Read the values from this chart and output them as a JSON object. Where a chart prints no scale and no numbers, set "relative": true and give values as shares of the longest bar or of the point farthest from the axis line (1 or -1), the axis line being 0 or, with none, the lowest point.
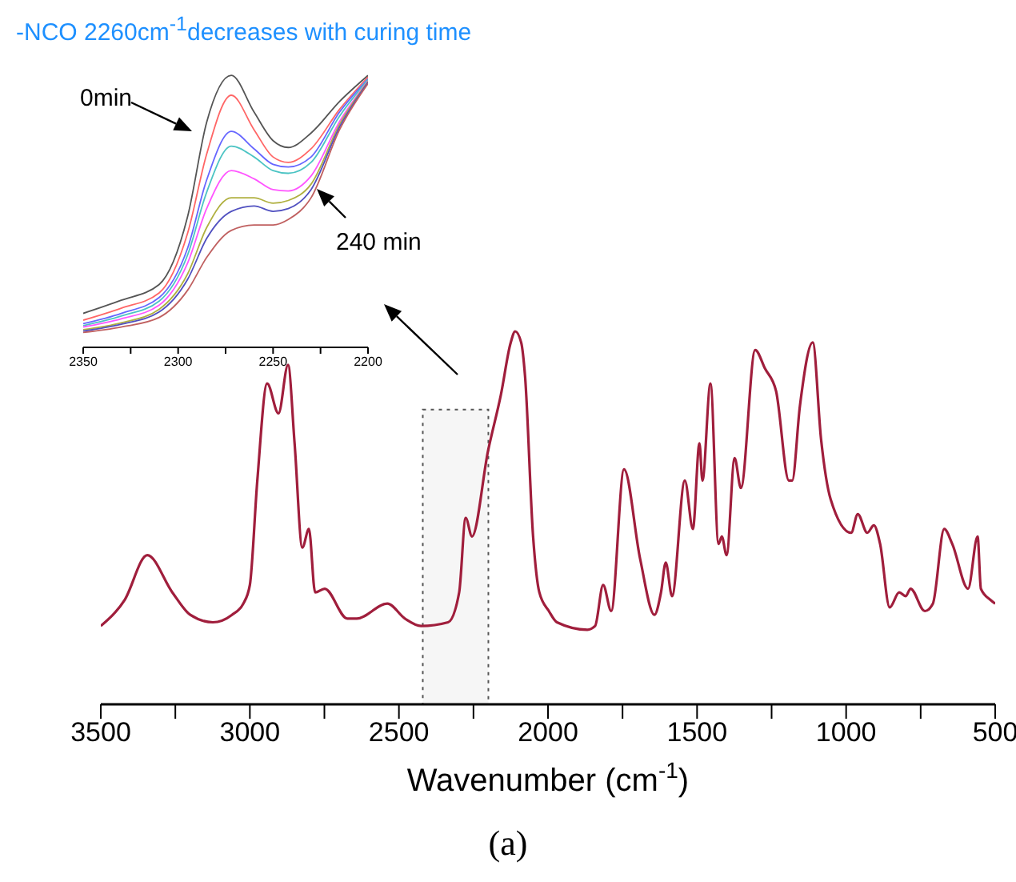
{
  "chart_data": [
    {
      "type": "line",
      "relative": true,
      "xlabel": "Wavenumber (cm$^{-1}$)",
      "annotations": [
        "(a)"
      ],
      "xlim": [
        3500,
        500
      ],
      "xticks": [
        3500,
        {
          "value": 3250,
          "label": null
        },
        3000,
        {
          "value": 2750,
          "label": null
        },
        2500,
        {
          "value": 2250,
          "label": null
        },
        2000,
        {
          "value": 1750,
          "label": null
        },
        1500,
        {
          "value": 1250,
          "label": null
        },
        1000,
        {
          "value": 750,
          "label": null
        },
        500
      ],
      "bands": [
        {
          "axis": "x",
          "from": 2420,
          "to": 2200,
          "color": "#555555"
        }
      ],
      "marker": "none",
      "line_style": "solid",
      "x": [
        3500,
        3420,
        3344,
        3260,
        3200,
        3124,
        3060,
        3022,
        3000,
        2975,
        2942,
        2904,
        2872,
        2850,
        2824,
        2802,
        2781,
        2749,
        2673,
        2641,
        2539,
        2480,
        2426,
        2335,
        2298,
        2276,
        2255,
        2201,
        2158,
        2125,
        2110,
        2090,
        2077,
        2050,
        2029,
        1997,
        1970,
        1868,
        1842,
        1815,
        1788,
        1745,
        1691,
        1643,
        1621,
        1605,
        1584,
        1541,
        1514,
        1492,
        1482,
        1455,
        1428,
        1417,
        1401,
        1374,
        1353,
        1305,
        1272,
        1235,
        1192,
        1181,
        1155,
        1112,
        1084,
        1052,
        983,
        961,
        929,
        907,
        886,
        854,
        822,
        800,
        784,
        736,
        709,
        671,
        644,
        591,
        559,
        548,
        516,
        500
      ],
      "series": [
        {
          "color": "#a01e3c",
          "values": [
            0.21,
            0.28,
            0.4,
            0.3,
            0.24,
            0.22,
            0.24,
            0.27,
            0.32,
            0.6,
            0.86,
            0.78,
            0.91,
            0.7,
            0.42,
            0.47,
            0.3,
            0.31,
            0.23,
            0.23,
            0.27,
            0.23,
            0.21,
            0.22,
            0.3,
            0.5,
            0.45,
            0.68,
            0.83,
            0.97,
            1.0,
            0.97,
            0.88,
            0.45,
            0.3,
            0.25,
            0.22,
            0.2,
            0.21,
            0.32,
            0.25,
            0.63,
            0.39,
            0.24,
            0.3,
            0.38,
            0.29,
            0.6,
            0.47,
            0.7,
            0.6,
            0.86,
            0.43,
            0.45,
            0.4,
            0.66,
            0.58,
            0.95,
            0.9,
            0.84,
            0.6,
            0.6,
            0.8,
            0.97,
            0.71,
            0.55,
            0.46,
            0.51,
            0.46,
            0.48,
            0.43,
            0.26,
            0.3,
            0.29,
            0.31,
            0.25,
            0.27,
            0.47,
            0.43,
            0.31,
            0.45,
            0.31,
            0.28,
            0.27
          ]
        }
      ]
    },
    {
      "type": "line",
      "relative": true,
      "title": "-NCO 2260cm$^{-1}$decreases with curing time",
      "annotations": [
        "0min",
        "240 min"
      ],
      "xlim": [
        2350,
        2200
      ],
      "xticks": [
        2350,
        {
          "value": 2325,
          "label": null
        },
        2300,
        {
          "value": 2275,
          "label": null
        },
        2250,
        {
          "value": 2225,
          "label": null
        },
        2200
      ],
      "marker": "none",
      "line_style": "solid",
      "x": [
        2350,
        2330,
        2310,
        2295,
        2285,
        2272,
        2260,
        2250,
        2242,
        2230,
        2215,
        2200
      ],
      "series": [
        {
          "color": "#555555",
          "values": [
            0.125,
            0.173,
            0.231,
            0.481,
            0.827,
            1.0,
            0.865,
            0.76,
            0.735,
            0.788,
            0.904,
            1.0
          ]
        },
        {
          "color": "#ff6666",
          "values": [
            0.1,
            0.144,
            0.2,
            0.42,
            0.71,
            0.927,
            0.8,
            0.7,
            0.68,
            0.73,
            0.875,
            0.994
          ]
        },
        {
          "color": "#6666ff",
          "values": [
            0.087,
            0.125,
            0.183,
            0.365,
            0.615,
            0.794,
            0.73,
            0.673,
            0.663,
            0.7,
            0.865,
            0.987
          ]
        },
        {
          "color": "#4cc4c4",
          "values": [
            0.08,
            0.115,
            0.17,
            0.34,
            0.57,
            0.74,
            0.7,
            0.65,
            0.64,
            0.68,
            0.85,
            0.985
          ]
        },
        {
          "color": "#ff55ff",
          "values": [
            0.075,
            0.105,
            0.155,
            0.31,
            0.51,
            0.65,
            0.62,
            0.58,
            0.575,
            0.63,
            0.83,
            0.98
          ]
        },
        {
          "color": "#b0b040",
          "values": [
            0.065,
            0.09,
            0.14,
            0.27,
            0.44,
            0.55,
            0.55,
            0.53,
            0.54,
            0.6,
            0.82,
            0.978
          ]
        },
        {
          "color": "#5050c0",
          "values": [
            0.06,
            0.085,
            0.13,
            0.25,
            0.4,
            0.5,
            0.52,
            0.5,
            0.51,
            0.58,
            0.81,
            0.975
          ]
        },
        {
          "color": "#c06060",
          "values": [
            0.055,
            0.075,
            0.11,
            0.21,
            0.33,
            0.43,
            0.45,
            0.45,
            0.47,
            0.55,
            0.8,
            0.97
          ]
        }
      ]
    }
  ]
}
